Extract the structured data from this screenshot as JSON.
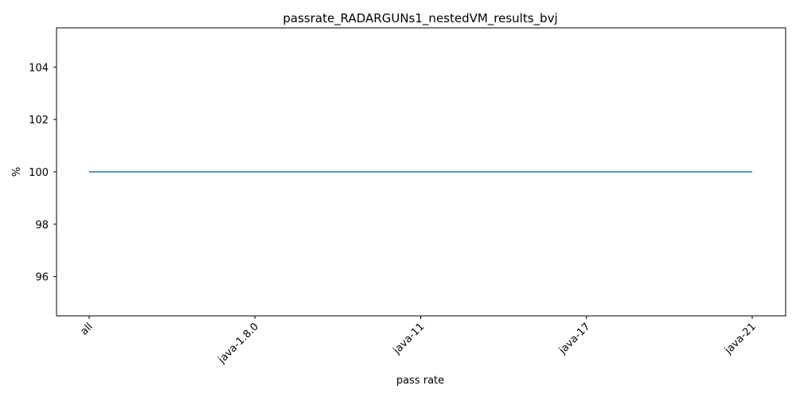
{
  "chart_data": {
    "type": "line",
    "title": "passrate_RADARGUNs1_nestedVM_results_bvj",
    "xlabel": "pass rate",
    "ylabel": "%",
    "categories": [
      "all",
      "java-1.8.0",
      "java-11",
      "java-17",
      "java-21"
    ],
    "series": [
      {
        "values": [
          100,
          100,
          100,
          100,
          100
        ],
        "color": "#1f77b4"
      }
    ],
    "ylim": [
      94.5,
      105.5
    ],
    "yticks": [
      96,
      98,
      100,
      102,
      104
    ],
    "ytick_labels": [
      "96",
      "98",
      "100",
      "102",
      "104"
    ],
    "grid": false,
    "legend": "none"
  }
}
